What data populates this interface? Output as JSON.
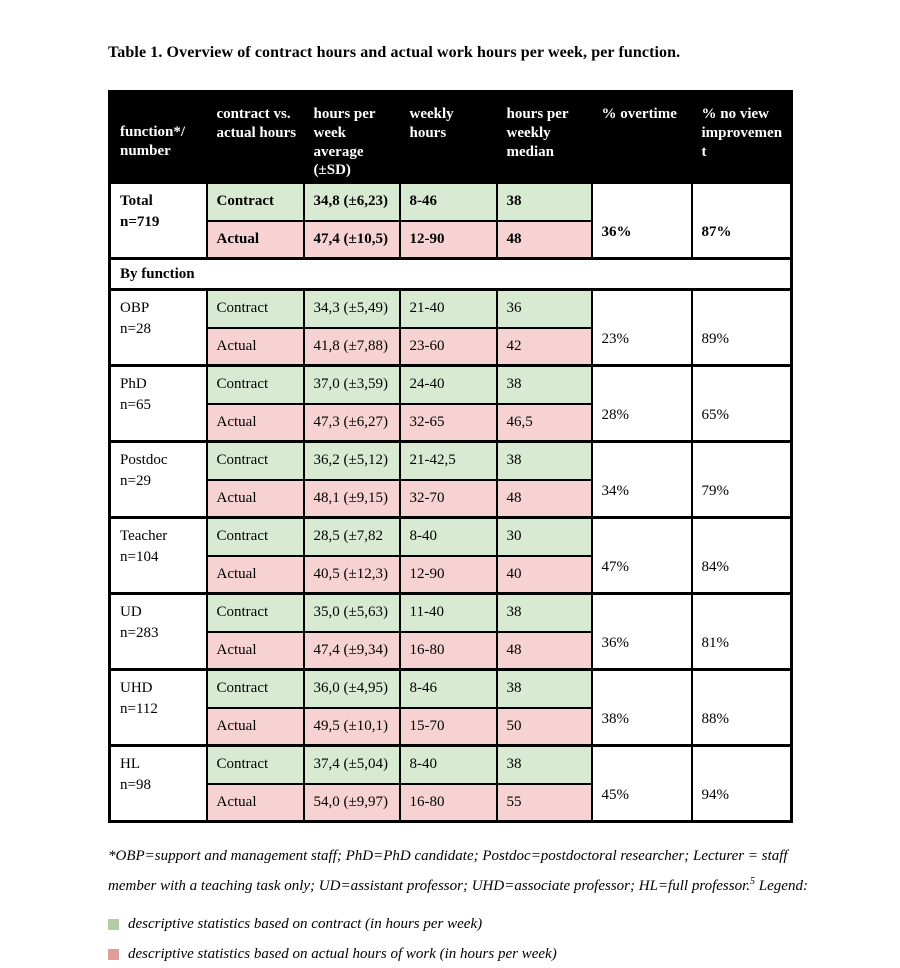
{
  "title": "Table 1. Overview of contract hours and actual work hours per week, per function.",
  "colors": {
    "header-bg": "#000000",
    "header-text": "#ffffff",
    "contract-green": "#d9ead3",
    "actual-pink": "#f6d2d2",
    "legend-green": "#b2cca3",
    "legend-red": "#e09e9b"
  },
  "table": {
    "headers": {
      "function": "function*/\nnumber",
      "contract_vs_actual": "contract vs.\nactual hours",
      "avg": "hours per\nweek\naverage\n(±SD)",
      "weekly_hours": "weekly\nhours",
      "median": "hours per\nweekly\nmedian",
      "overtime": "% overtime",
      "no_view_improvement": "% no view\nimprovemen\nt"
    },
    "row_labels": {
      "contract": "Contract",
      "actual": "Actual"
    },
    "total": {
      "function": "Total",
      "n": "n=719",
      "contract": {
        "avg": "34,8 (±6,23)",
        "range": "8-46",
        "median": "38"
      },
      "actual": {
        "avg": "47,4 (±10,5)",
        "range": "12-90",
        "median": "48"
      },
      "overtime": "36%",
      "no_view_improvement": "87%"
    },
    "section_label": "By function",
    "rows": [
      {
        "function": "OBP",
        "n": "n=28",
        "contract": {
          "avg": "34,3 (±5,49)",
          "range": "21-40",
          "median": "36"
        },
        "actual": {
          "avg": "41,8 (±7,88)",
          "range": "23-60",
          "median": "42"
        },
        "overtime": "23%",
        "no_view_improvement": "89%"
      },
      {
        "function": "PhD",
        "n": "n=65",
        "contract": {
          "avg": "37,0 (±3,59)",
          "range": "24-40",
          "median": "38"
        },
        "actual": {
          "avg": "47,3 (±6,27)",
          "range": "32-65",
          "median": "46,5"
        },
        "overtime": "28%",
        "no_view_improvement": "65%"
      },
      {
        "function": "Postdoc",
        "n": "n=29",
        "contract": {
          "avg": "36,2 (±5,12)",
          "range": "21-42,5",
          "median": "38"
        },
        "actual": {
          "avg": "48,1 (±9,15)",
          "range": "32-70",
          "median": "48"
        },
        "overtime": "34%",
        "no_view_improvement": "79%"
      },
      {
        "function": "Teacher",
        "n": "n=104",
        "contract": {
          "avg": "28,5 (±7,82",
          "range": "8-40",
          "median": "30"
        },
        "actual": {
          "avg": "40,5 (±12,3)",
          "range": "12-90",
          "median": "40"
        },
        "overtime": "47%",
        "no_view_improvement": "84%"
      },
      {
        "function": "UD",
        "n": "n=283",
        "contract": {
          "avg": "35,0 (±5,63)",
          "range": "11-40",
          "median": "38"
        },
        "actual": {
          "avg": "47,4 (±9,34)",
          "range": "16-80",
          "median": "48"
        },
        "overtime": "36%",
        "no_view_improvement": "81%"
      },
      {
        "function": "UHD",
        "n": "n=112",
        "contract": {
          "avg": "36,0 (±4,95)",
          "range": "8-46",
          "median": "38"
        },
        "actual": {
          "avg": "49,5 (±10,1)",
          "range": "15-70",
          "median": "50"
        },
        "overtime": "38%",
        "no_view_improvement": "88%"
      },
      {
        "function": "HL",
        "n": "n=98",
        "contract": {
          "avg": "37,4 (±5,04)",
          "range": "8-40",
          "median": "38"
        },
        "actual": {
          "avg": "54,0 (±9,97)",
          "range": "16-80",
          "median": "55"
        },
        "overtime": "45%",
        "no_view_improvement": "94%"
      }
    ]
  },
  "footnote": {
    "before_sup": "*OBP=support and management staff; PhD=PhD candidate; Postdoc=postdoctoral researcher; Lecturer = staff member with a teaching task only; UD=assistant professor; UHD=associate professor; HL=full professor.",
    "sup": "5",
    "after_sup": " Legend:"
  },
  "legend": [
    {
      "text": "descriptive statistics based on contract (in hours per week)"
    },
    {
      "text": "descriptive statistics based on actual hours of work (in hours per week)"
    }
  ]
}
